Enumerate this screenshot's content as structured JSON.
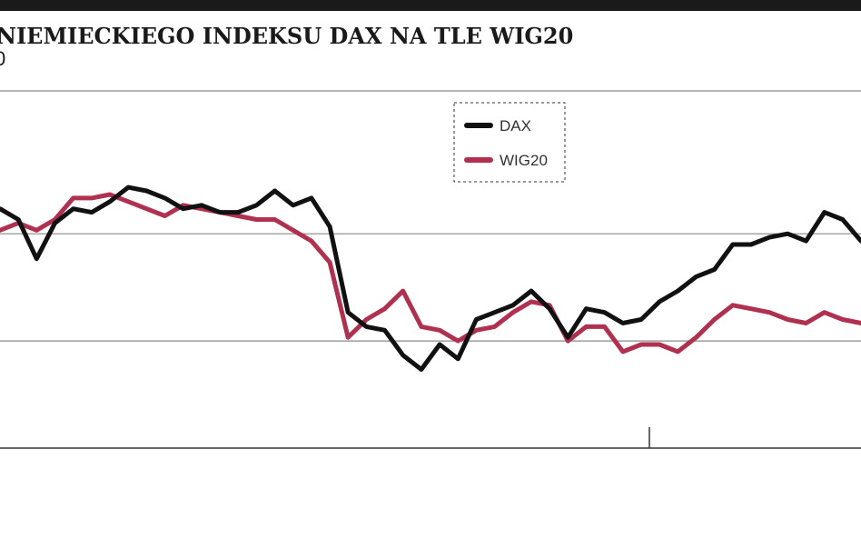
{
  "chart_data": {
    "type": "line",
    "title": "NIEMIECKIEGO INDEKSU DAX NA TLE WIG20",
    "subtitle": "0",
    "categories": [
      null,
      null,
      null,
      null,
      null,
      null,
      null,
      null,
      null,
      null,
      null,
      null,
      null,
      null,
      null,
      null,
      null,
      null,
      null,
      null,
      null,
      null,
      null,
      null,
      null,
      null,
      null,
      null,
      null,
      null,
      null,
      null,
      null,
      null,
      null,
      null,
      null,
      null,
      null,
      null,
      null,
      null,
      null,
      null,
      null,
      null,
      null,
      null
    ],
    "series": [
      {
        "name": "DAX",
        "color": "#111111",
        "values": [
          67,
          64,
          53,
          63,
          67,
          66,
          69,
          73,
          72,
          70,
          67,
          68,
          66,
          66,
          68,
          72,
          68,
          70,
          62,
          38,
          34,
          33,
          26,
          22,
          29,
          25,
          36,
          38,
          40,
          44,
          39,
          31,
          39,
          38,
          35,
          36,
          41,
          44,
          48,
          50,
          57,
          57,
          59,
          60,
          58,
          66,
          64,
          58
        ]
      },
      {
        "name": "WIG20",
        "color": "#b03050",
        "values": [
          61,
          63,
          61,
          64,
          70,
          70,
          71,
          69,
          67,
          65,
          68,
          67,
          66,
          65,
          64,
          64,
          61,
          58,
          52,
          31,
          36,
          39,
          44,
          34,
          33,
          30,
          33,
          34,
          38,
          41,
          40,
          30,
          34,
          34,
          27,
          29,
          29,
          27,
          31,
          36,
          40,
          39,
          38,
          36,
          35,
          38,
          36,
          35
        ]
      }
    ],
    "ylim": [
      0,
      100
    ],
    "yticks": [
      0,
      30,
      60,
      100
    ],
    "grid": true
  }
}
